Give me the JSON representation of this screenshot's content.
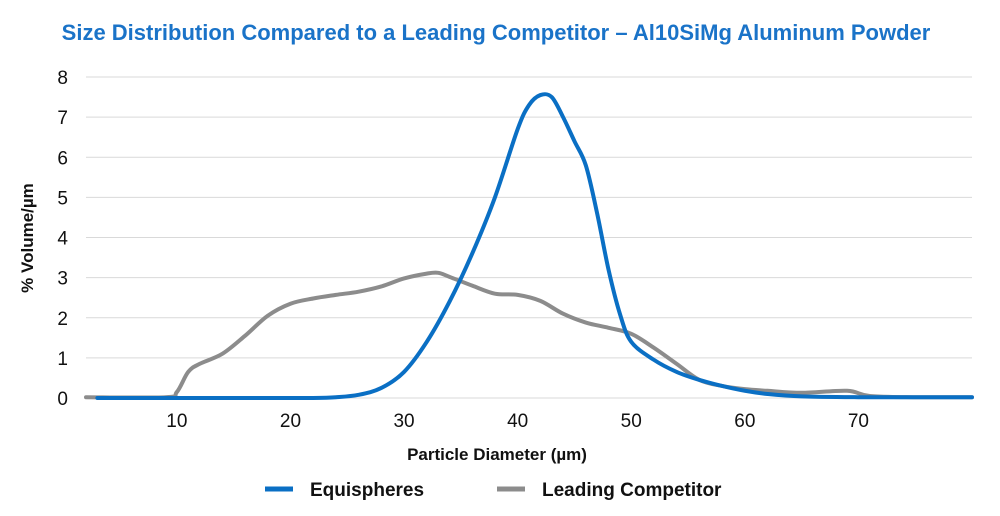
{
  "chart_data": {
    "type": "line",
    "title": "Size Distribution Compared to a Leading Competitor – Al10SiMg Aluminum Powder",
    "xlabel": "Particle Diameter (µm)",
    "ylabel": "% Volume/µm",
    "xlim": [
      2,
      80
    ],
    "ylim": [
      0,
      8
    ],
    "x_ticks": [
      10,
      20,
      30,
      40,
      50,
      60,
      70
    ],
    "y_ticks": [
      0,
      1,
      2,
      3,
      4,
      5,
      6,
      7,
      8
    ],
    "grid": "horizontal",
    "legend_position": "bottom",
    "title_color": "#1a73c8",
    "series": [
      {
        "name": "Equispheres",
        "color": "#0a6fc4",
        "x": [
          3,
          10,
          15,
          20,
          22,
          24,
          26,
          28,
          30,
          32,
          34,
          36,
          38,
          40,
          41,
          42,
          43,
          44,
          45,
          46,
          47,
          48,
          49,
          50,
          52,
          54,
          56,
          58,
          60,
          62,
          65,
          70,
          75,
          80
        ],
        "y": [
          0.0,
          0.0,
          0.0,
          0.0,
          0.0,
          0.02,
          0.08,
          0.25,
          0.65,
          1.4,
          2.4,
          3.6,
          5.0,
          6.7,
          7.3,
          7.55,
          7.5,
          7.0,
          6.4,
          5.8,
          4.6,
          3.2,
          2.1,
          1.4,
          0.95,
          0.65,
          0.45,
          0.3,
          0.18,
          0.1,
          0.04,
          0.02,
          0.02,
          0.02
        ]
      },
      {
        "name": "Leading Competitor",
        "color": "#8c8c8c",
        "x": [
          2,
          9,
          10,
          11,
          12,
          14,
          16,
          18,
          20,
          22,
          24,
          26,
          28,
          30,
          32,
          33,
          34,
          36,
          38,
          40,
          42,
          44,
          46,
          48,
          50,
          52,
          54,
          56,
          58,
          60,
          62,
          65,
          69,
          71,
          75,
          80
        ],
        "y": [
          0.02,
          0.02,
          0.15,
          0.65,
          0.85,
          1.1,
          1.55,
          2.05,
          2.35,
          2.48,
          2.57,
          2.65,
          2.78,
          2.98,
          3.1,
          3.12,
          3.02,
          2.8,
          2.6,
          2.57,
          2.42,
          2.1,
          1.88,
          1.75,
          1.6,
          1.25,
          0.85,
          0.45,
          0.3,
          0.22,
          0.18,
          0.13,
          0.18,
          0.05,
          0.02,
          0.02
        ]
      }
    ]
  }
}
